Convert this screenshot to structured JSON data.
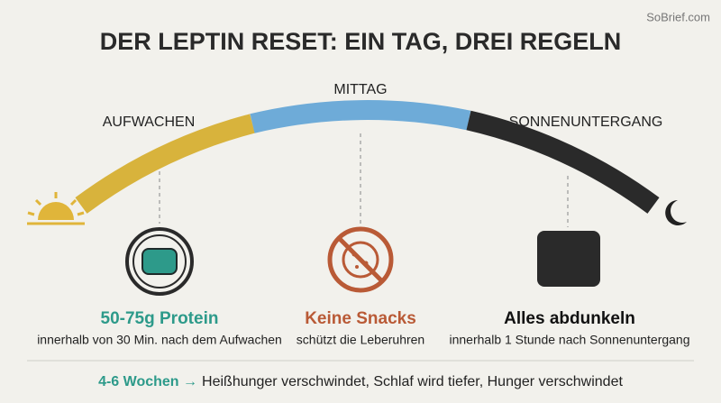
{
  "watermark": "SoBrief.com",
  "title": "DER LEPTIN RESET: EIN TAG, DREI REGELN",
  "timeline": {
    "start": "AUFWACHEN",
    "middle": "MITTAG",
    "end": "SONNENUNTERGANG"
  },
  "rules": [
    {
      "title": "50-75g Protein",
      "subtitle": "innerhalb von 30 Min. nach dem Aufwachen"
    },
    {
      "title": "Keine Snacks",
      "subtitle": "schützt die Leberuhren"
    },
    {
      "title": "Alles abdunkeln",
      "subtitle": "innerhalb 1 Stunde nach Sonnenuntergang"
    }
  ],
  "footer": {
    "highlight": "4-6 Wochen →",
    "text": "Heißhunger verschwindet, Schlaf wird tiefer, Hunger verschwindet"
  }
}
